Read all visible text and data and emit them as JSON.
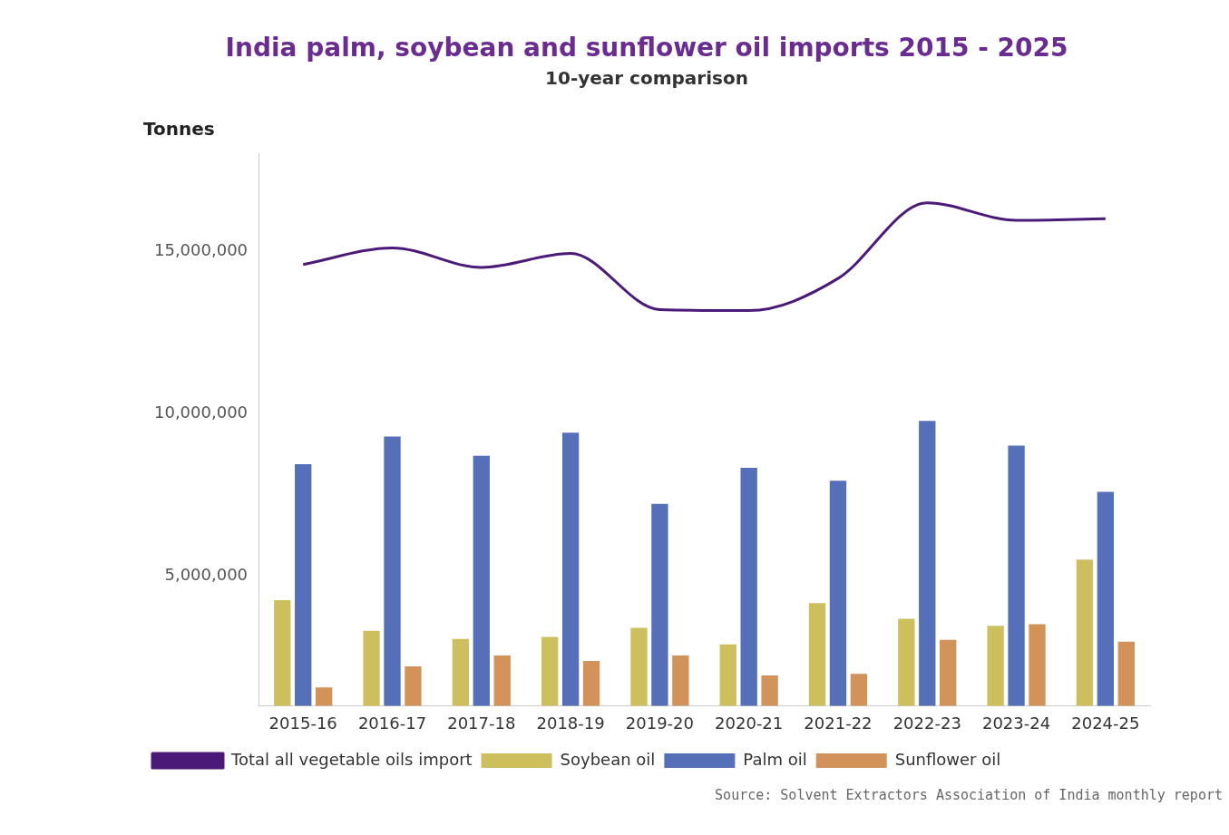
{
  "chart_data": {
    "type": "bar",
    "title": "India palm, soybean and sunflower oil imports 2015 - 2025",
    "subtitle": "10-year comparison",
    "ylabel": "Tonnes",
    "categories": [
      "2015-16",
      "2016-17",
      "2017-18",
      "2018-19",
      "2019-20",
      "2020-21",
      "2021-22",
      "2022-23",
      "2023-24",
      "2024-25"
    ],
    "series": [
      {
        "name": "Total all vegetable oils import",
        "type": "line",
        "color": "#4b1a78",
        "values": [
          14590000,
          15100000,
          14500000,
          14930000,
          13200000,
          13170000,
          14160000,
          16490000,
          15950000,
          16000000
        ]
      },
      {
        "name": "Soybean oil",
        "color": "#cdbf5e",
        "values": [
          4250000,
          3310000,
          3060000,
          3120000,
          3400000,
          2890000,
          4160000,
          3680000,
          3460000,
          5500000
        ]
      },
      {
        "name": "Palm oil",
        "color": "#5570b8",
        "values": [
          8440000,
          9290000,
          8700000,
          9410000,
          7220000,
          8330000,
          7930000,
          9770000,
          9010000,
          7590000
        ]
      },
      {
        "name": "Sunflower oil",
        "color": "#d2935a",
        "values": [
          1560000,
          2210000,
          2550000,
          2380000,
          2550000,
          1930000,
          1980000,
          3030000,
          3510000,
          2970000
        ]
      }
    ],
    "ylim": [
      1000000,
      18000000
    ],
    "yticks": [
      {
        "value": 5000000,
        "label": "5,000,000"
      },
      {
        "value": 10000000,
        "label": "10,000,000"
      },
      {
        "value": 15000000,
        "label": "15,000,000"
      }
    ],
    "grid": false,
    "legend": "bottom",
    "marker": "none",
    "annotations": [
      "Source: Solvent Extractors Association of India monthly report"
    ]
  }
}
